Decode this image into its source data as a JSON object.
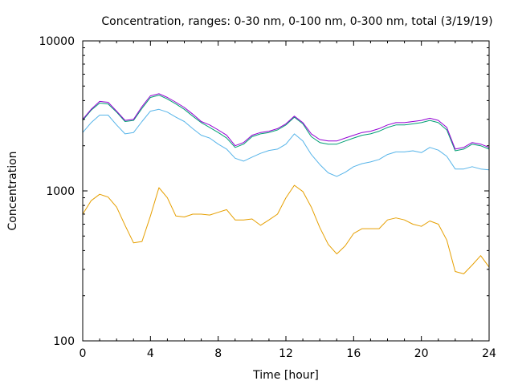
{
  "chart_data": {
    "type": "line",
    "title": "Concentration, ranges: 0-30 nm, 0-100 nm, 0-300 nm, total (3/19/19)",
    "xlabel": "Time [hour]",
    "ylabel": "Concentration",
    "xlim": [
      0,
      24
    ],
    "ylim": [
      100,
      10000
    ],
    "yscale": "log",
    "grid": false,
    "x_ticks": [
      0,
      4,
      8,
      12,
      16,
      20,
      24
    ],
    "x_tick_labels": [
      "0",
      "4",
      "8",
      "12",
      "16",
      "20",
      "24"
    ],
    "y_ticks": [
      100,
      1000,
      10000
    ],
    "y_tick_labels": [
      "100",
      "1000",
      "10000"
    ],
    "x": [
      0,
      0.5,
      1,
      1.5,
      2,
      2.5,
      3,
      3.5,
      4,
      4.5,
      5,
      5.5,
      6,
      6.5,
      7,
      7.5,
      8,
      8.5,
      9,
      9.5,
      10,
      10.5,
      11,
      11.5,
      12,
      12.5,
      13,
      13.5,
      14,
      14.5,
      15,
      15.5,
      16,
      16.5,
      17,
      17.5,
      18,
      18.5,
      19,
      19.5,
      20,
      20.5,
      21,
      21.5,
      22,
      22.5,
      23,
      23.5,
      24
    ],
    "series": [
      {
        "color": "#e69f00",
        "values": [
          700,
          860,
          950,
          910,
          780,
          590,
          450,
          460,
          680,
          1050,
          900,
          680,
          670,
          700,
          700,
          690,
          720,
          750,
          640,
          640,
          650,
          590,
          640,
          700,
          900,
          1090,
          990,
          780,
          570,
          440,
          380,
          430,
          520,
          560,
          560,
          560,
          640,
          660,
          640,
          600,
          580,
          630,
          600,
          470,
          290,
          280,
          320,
          370,
          310
        ]
      },
      {
        "color": "#56b4e9",
        "values": [
          2450,
          2850,
          3200,
          3200,
          2750,
          2400,
          2450,
          2900,
          3400,
          3500,
          3350,
          3100,
          2900,
          2600,
          2350,
          2250,
          2050,
          1900,
          1650,
          1580,
          1680,
          1780,
          1860,
          1900,
          2050,
          2400,
          2150,
          1750,
          1500,
          1320,
          1250,
          1330,
          1450,
          1520,
          1560,
          1620,
          1750,
          1820,
          1820,
          1850,
          1800,
          1950,
          1870,
          1700,
          1400,
          1400,
          1450,
          1400,
          1380
        ]
      },
      {
        "color": "#009e73",
        "values": [
          2950,
          3450,
          3850,
          3800,
          3350,
          2900,
          2950,
          3550,
          4200,
          4350,
          4100,
          3800,
          3500,
          3150,
          2850,
          2650,
          2450,
          2250,
          1950,
          2050,
          2300,
          2400,
          2450,
          2550,
          2750,
          3100,
          2800,
          2300,
          2100,
          2050,
          2050,
          2150,
          2250,
          2350,
          2400,
          2500,
          2650,
          2750,
          2750,
          2800,
          2850,
          2950,
          2850,
          2550,
          1850,
          1900,
          2050,
          2000,
          1900
        ]
      },
      {
        "color": "#9400d3",
        "values": [
          3000,
          3500,
          3950,
          3900,
          3400,
          2950,
          3000,
          3650,
          4300,
          4450,
          4200,
          3900,
          3600,
          3250,
          2900,
          2750,
          2550,
          2350,
          2000,
          2100,
          2350,
          2450,
          2500,
          2600,
          2800,
          3150,
          2850,
          2400,
          2200,
          2150,
          2150,
          2250,
          2350,
          2450,
          2500,
          2600,
          2750,
          2850,
          2850,
          2900,
          2950,
          3050,
          2950,
          2650,
          1900,
          1950,
          2100,
          2050,
          1950
        ]
      }
    ]
  }
}
